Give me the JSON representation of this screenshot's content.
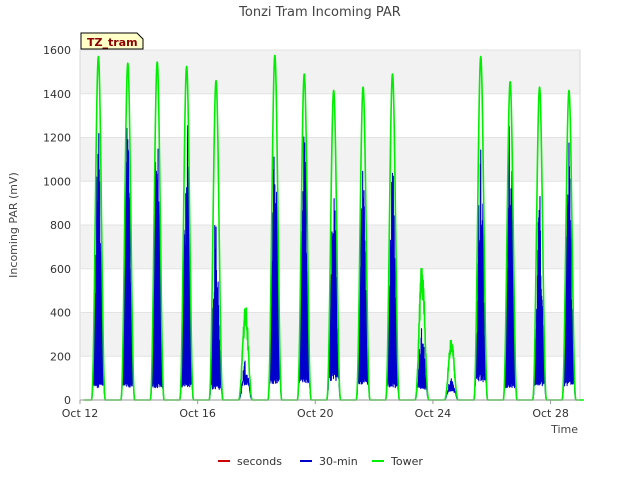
{
  "chart_data": {
    "type": "line",
    "title": "Tonzi Tram Incoming PAR",
    "xlabel": "Time",
    "ylabel": "Incoming PAR (mV)",
    "badge": "TZ_tram",
    "xlim": [
      0,
      17.0
    ],
    "ylim": [
      0,
      1600
    ],
    "x_unit": "days since Oct 12",
    "x_ticks": [
      {
        "x": 0,
        "label": "Oct 12"
      },
      {
        "x": 4,
        "label": "Oct 16"
      },
      {
        "x": 8,
        "label": "Oct 20"
      },
      {
        "x": 12,
        "label": "Oct 24"
      },
      {
        "x": 16,
        "label": "Oct 28"
      }
    ],
    "y_ticks": [
      0,
      200,
      400,
      600,
      800,
      1000,
      1200,
      1400,
      1600
    ],
    "grid": true,
    "legend_position": "bottom",
    "series": [
      {
        "name": "seconds",
        "color": "#cc0000",
        "days": []
      },
      {
        "name": "30-min",
        "color": "#0000cc",
        "days": [
          {
            "day": 0,
            "peak": 1380,
            "plateau": 70
          },
          {
            "day": 1,
            "peak": 1380,
            "plateau": 70
          },
          {
            "day": 2,
            "peak": 1300,
            "plateau": 70
          },
          {
            "day": 3,
            "peak": 1330,
            "plateau": 70
          },
          {
            "day": 4,
            "peak": 890,
            "plateau": 60
          },
          {
            "day": 5,
            "peak": 180,
            "plateau": 80
          },
          {
            "day": 6,
            "peak": 1300,
            "plateau": 90
          },
          {
            "day": 7,
            "peak": 1240,
            "plateau": 90
          },
          {
            "day": 8,
            "peak": 1030,
            "plateau": 110
          },
          {
            "day": 9,
            "peak": 1100,
            "plateau": 90
          },
          {
            "day": 10,
            "peak": 1100,
            "plateau": 70
          },
          {
            "day": 11,
            "peak": 350,
            "plateau": 60
          },
          {
            "day": 12,
            "peak": 120,
            "plateau": 40
          },
          {
            "day": 13,
            "peak": 1180,
            "plateau": 100
          },
          {
            "day": 14,
            "peak": 1310,
            "plateau": 70
          },
          {
            "day": 15,
            "peak": 970,
            "plateau": 80
          },
          {
            "day": 16,
            "peak": 1180,
            "plateau": 80
          }
        ]
      },
      {
        "name": "Tower",
        "color": "#00ee00",
        "days": [
          {
            "day": 0,
            "peak": 1570
          },
          {
            "day": 1,
            "peak": 1540
          },
          {
            "day": 2,
            "peak": 1545
          },
          {
            "day": 3,
            "peak": 1525
          },
          {
            "day": 4,
            "peak": 1460
          },
          {
            "day": 5,
            "peak": 450
          },
          {
            "day": 6,
            "peak": 1575
          },
          {
            "day": 7,
            "peak": 1490
          },
          {
            "day": 8,
            "peak": 1415
          },
          {
            "day": 9,
            "peak": 1430
          },
          {
            "day": 10,
            "peak": 1490
          },
          {
            "day": 11,
            "peak": 635
          },
          {
            "day": 12,
            "peak": 285
          },
          {
            "day": 13,
            "peak": 1570
          },
          {
            "day": 14,
            "peak": 1455
          },
          {
            "day": 15,
            "peak": 1430
          },
          {
            "day": 16,
            "peak": 1415
          }
        ]
      }
    ]
  }
}
